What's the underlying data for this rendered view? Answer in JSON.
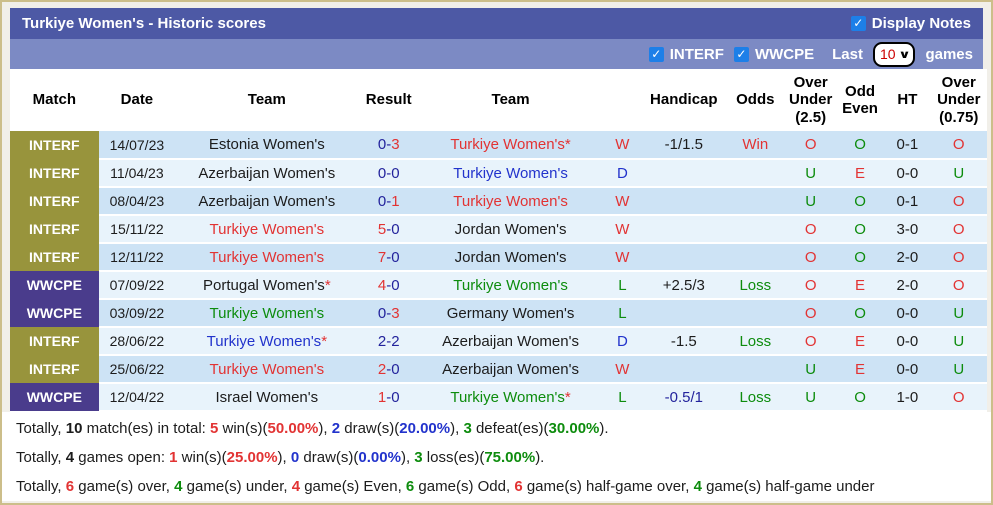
{
  "colors": {
    "k": "#1c1c1c",
    "r": "#e23333",
    "b": "#2233cc",
    "g": "#0d8c0d",
    "n": "#23239c",
    "w": "#ffffff"
  },
  "icons": {
    "checkbox_check": "✓",
    "dropdown_caret": "∨"
  },
  "header": {
    "title": "Turkiye Women's - Historic scores",
    "display_notes_label": "Display Notes"
  },
  "filter_bar": {
    "interf_label": "INTERF",
    "wwcpe_label": "WWCPE",
    "last_label": "Last",
    "games_count": "10",
    "games_label": "games"
  },
  "table": {
    "headers": [
      "Match",
      "Date",
      "Team",
      "Result",
      "Team",
      "",
      "Handicap",
      "Odds",
      "Over\nUnder\n(2.5)",
      "Odd\nEven",
      "HT",
      "Over\nUnder\n(0.75)"
    ],
    "rows": [
      {
        "league": "INTERF",
        "league_class": "olive",
        "date": "14/07/23",
        "home": {
          "text": "Estonia Women's",
          "color": "k",
          "star": false
        },
        "score": [
          {
            "t": "0",
            "c": "n"
          },
          {
            "t": "3",
            "c": "r"
          }
        ],
        "away": {
          "text": "Turkiye Women's",
          "color": "r",
          "star": true
        },
        "wdl": {
          "t": "W",
          "c": "r"
        },
        "handicap": {
          "t": "-1/1.5",
          "c": "k"
        },
        "odds": {
          "t": "Win",
          "c": "r"
        },
        "ou25": {
          "t": "O",
          "c": "r"
        },
        "oe": {
          "t": "O",
          "c": "g"
        },
        "ht": "0-1",
        "ou075": {
          "t": "O",
          "c": "r"
        }
      },
      {
        "league": "INTERF",
        "league_class": "olive",
        "date": "11/04/23",
        "home": {
          "text": "Azerbaijan Women's",
          "color": "k",
          "star": false
        },
        "score": [
          {
            "t": "0",
            "c": "n"
          },
          {
            "t": "0",
            "c": "n"
          }
        ],
        "away": {
          "text": "Turkiye Women's",
          "color": "b",
          "star": false
        },
        "wdl": {
          "t": "D",
          "c": "b"
        },
        "handicap": {
          "t": "",
          "c": "k"
        },
        "odds": {
          "t": "",
          "c": "k"
        },
        "ou25": {
          "t": "U",
          "c": "g"
        },
        "oe": {
          "t": "E",
          "c": "r"
        },
        "ht": "0-0",
        "ou075": {
          "t": "U",
          "c": "g"
        }
      },
      {
        "league": "INTERF",
        "league_class": "olive",
        "date": "08/04/23",
        "home": {
          "text": "Azerbaijan Women's",
          "color": "k",
          "star": false
        },
        "score": [
          {
            "t": "0",
            "c": "n"
          },
          {
            "t": "1",
            "c": "r"
          }
        ],
        "away": {
          "text": "Turkiye Women's",
          "color": "r",
          "star": false
        },
        "wdl": {
          "t": "W",
          "c": "r"
        },
        "handicap": {
          "t": "",
          "c": "k"
        },
        "odds": {
          "t": "",
          "c": "k"
        },
        "ou25": {
          "t": "U",
          "c": "g"
        },
        "oe": {
          "t": "O",
          "c": "g"
        },
        "ht": "0-1",
        "ou075": {
          "t": "O",
          "c": "r"
        }
      },
      {
        "league": "INTERF",
        "league_class": "olive",
        "date": "15/11/22",
        "home": {
          "text": "Turkiye Women's",
          "color": "r",
          "star": false
        },
        "score": [
          {
            "t": "5",
            "c": "r"
          },
          {
            "t": "0",
            "c": "n"
          }
        ],
        "away": {
          "text": "Jordan Women's",
          "color": "k",
          "star": false
        },
        "wdl": {
          "t": "W",
          "c": "r"
        },
        "handicap": {
          "t": "",
          "c": "k"
        },
        "odds": {
          "t": "",
          "c": "k"
        },
        "ou25": {
          "t": "O",
          "c": "r"
        },
        "oe": {
          "t": "O",
          "c": "g"
        },
        "ht": "3-0",
        "ou075": {
          "t": "O",
          "c": "r"
        }
      },
      {
        "league": "INTERF",
        "league_class": "olive",
        "date": "12/11/22",
        "home": {
          "text": "Turkiye Women's",
          "color": "r",
          "star": false
        },
        "score": [
          {
            "t": "7",
            "c": "r"
          },
          {
            "t": "0",
            "c": "n"
          }
        ],
        "away": {
          "text": "Jordan Women's",
          "color": "k",
          "star": false
        },
        "wdl": {
          "t": "W",
          "c": "r"
        },
        "handicap": {
          "t": "",
          "c": "k"
        },
        "odds": {
          "t": "",
          "c": "k"
        },
        "ou25": {
          "t": "O",
          "c": "r"
        },
        "oe": {
          "t": "O",
          "c": "g"
        },
        "ht": "2-0",
        "ou075": {
          "t": "O",
          "c": "r"
        }
      },
      {
        "league": "WWCPE",
        "league_class": "purple",
        "date": "07/09/22",
        "home": {
          "text": "Portugal Women's",
          "color": "k",
          "star": true
        },
        "score": [
          {
            "t": "4",
            "c": "r"
          },
          {
            "t": "0",
            "c": "n"
          }
        ],
        "away": {
          "text": "Turkiye Women's",
          "color": "g",
          "star": false
        },
        "wdl": {
          "t": "L",
          "c": "g"
        },
        "handicap": {
          "t": "+2.5/3",
          "c": "k"
        },
        "odds": {
          "t": "Loss",
          "c": "g"
        },
        "ou25": {
          "t": "O",
          "c": "r"
        },
        "oe": {
          "t": "E",
          "c": "r"
        },
        "ht": "2-0",
        "ou075": {
          "t": "O",
          "c": "r"
        }
      },
      {
        "league": "WWCPE",
        "league_class": "purple",
        "date": "03/09/22",
        "home": {
          "text": "Turkiye Women's",
          "color": "g",
          "star": false
        },
        "score": [
          {
            "t": "0",
            "c": "n"
          },
          {
            "t": "3",
            "c": "r"
          }
        ],
        "away": {
          "text": "Germany Women's",
          "color": "k",
          "star": false
        },
        "wdl": {
          "t": "L",
          "c": "g"
        },
        "handicap": {
          "t": "",
          "c": "k"
        },
        "odds": {
          "t": "",
          "c": "k"
        },
        "ou25": {
          "t": "O",
          "c": "r"
        },
        "oe": {
          "t": "O",
          "c": "g"
        },
        "ht": "0-0",
        "ou075": {
          "t": "U",
          "c": "g"
        }
      },
      {
        "league": "INTERF",
        "league_class": "olive",
        "date": "28/06/22",
        "home": {
          "text": "Turkiye Women's",
          "color": "b",
          "star": true
        },
        "score": [
          {
            "t": "2",
            "c": "n"
          },
          {
            "t": "2",
            "c": "n"
          }
        ],
        "away": {
          "text": "Azerbaijan Women's",
          "color": "k",
          "star": false
        },
        "wdl": {
          "t": "D",
          "c": "b"
        },
        "handicap": {
          "t": "-1.5",
          "c": "k"
        },
        "odds": {
          "t": "Loss",
          "c": "g"
        },
        "ou25": {
          "t": "O",
          "c": "r"
        },
        "oe": {
          "t": "E",
          "c": "r"
        },
        "ht": "0-0",
        "ou075": {
          "t": "U",
          "c": "g"
        }
      },
      {
        "league": "INTERF",
        "league_class": "olive",
        "date": "25/06/22",
        "home": {
          "text": "Turkiye Women's",
          "color": "r",
          "star": false
        },
        "score": [
          {
            "t": "2",
            "c": "r"
          },
          {
            "t": "0",
            "c": "n"
          }
        ],
        "away": {
          "text": "Azerbaijan Women's",
          "color": "k",
          "star": false
        },
        "wdl": {
          "t": "W",
          "c": "r"
        },
        "handicap": {
          "t": "",
          "c": "k"
        },
        "odds": {
          "t": "",
          "c": "k"
        },
        "ou25": {
          "t": "U",
          "c": "g"
        },
        "oe": {
          "t": "E",
          "c": "r"
        },
        "ht": "0-0",
        "ou075": {
          "t": "U",
          "c": "g"
        }
      },
      {
        "league": "WWCPE",
        "league_class": "purple",
        "date": "12/04/22",
        "home": {
          "text": "Israel Women's",
          "color": "k",
          "star": false
        },
        "score": [
          {
            "t": "1",
            "c": "r"
          },
          {
            "t": "0",
            "c": "n"
          }
        ],
        "away": {
          "text": "Turkiye Women's",
          "color": "g",
          "star": true
        },
        "wdl": {
          "t": "L",
          "c": "g"
        },
        "handicap": {
          "t": "-0.5/1",
          "c": "n"
        },
        "odds": {
          "t": "Loss",
          "c": "g"
        },
        "ou25": {
          "t": "U",
          "c": "g"
        },
        "oe": {
          "t": "O",
          "c": "g"
        },
        "ht": "1-0",
        "ou075": {
          "t": "O",
          "c": "r"
        }
      }
    ]
  },
  "footer": {
    "lines": [
      [
        {
          "t": "Totally, ",
          "c": "k"
        },
        {
          "t": "10",
          "c": "k",
          "b": 1
        },
        {
          "t": " match(es) in total: ",
          "c": "k"
        },
        {
          "t": "5",
          "c": "r",
          "b": 1
        },
        {
          "t": " win(s)(",
          "c": "k"
        },
        {
          "t": "50.00%",
          "c": "r",
          "b": 1
        },
        {
          "t": "), ",
          "c": "k"
        },
        {
          "t": "2",
          "c": "b",
          "b": 1
        },
        {
          "t": " draw(s)(",
          "c": "k"
        },
        {
          "t": "20.00%",
          "c": "b",
          "b": 1
        },
        {
          "t": "), ",
          "c": "k"
        },
        {
          "t": "3",
          "c": "g",
          "b": 1
        },
        {
          "t": " defeat(es)(",
          "c": "k"
        },
        {
          "t": "30.00%",
          "c": "g",
          "b": 1
        },
        {
          "t": ").",
          "c": "k"
        }
      ],
      [
        {
          "t": "Totally, ",
          "c": "k"
        },
        {
          "t": "4",
          "c": "k",
          "b": 1
        },
        {
          "t": " games open: ",
          "c": "k"
        },
        {
          "t": "1",
          "c": "r",
          "b": 1
        },
        {
          "t": " win(s)(",
          "c": "k"
        },
        {
          "t": "25.00%",
          "c": "r",
          "b": 1
        },
        {
          "t": "), ",
          "c": "k"
        },
        {
          "t": "0",
          "c": "b",
          "b": 1
        },
        {
          "t": " draw(s)(",
          "c": "k"
        },
        {
          "t": "0.00%",
          "c": "b",
          "b": 1
        },
        {
          "t": "), ",
          "c": "k"
        },
        {
          "t": "3",
          "c": "g",
          "b": 1
        },
        {
          "t": " loss(es)(",
          "c": "k"
        },
        {
          "t": "75.00%",
          "c": "g",
          "b": 1
        },
        {
          "t": ").",
          "c": "k"
        }
      ],
      [
        {
          "t": "Totally, ",
          "c": "k"
        },
        {
          "t": "6",
          "c": "r",
          "b": 1
        },
        {
          "t": " game(s) over, ",
          "c": "k"
        },
        {
          "t": "4",
          "c": "g",
          "b": 1
        },
        {
          "t": " game(s) under, ",
          "c": "k"
        },
        {
          "t": "4",
          "c": "r",
          "b": 1
        },
        {
          "t": " game(s) Even, ",
          "c": "k"
        },
        {
          "t": "6",
          "c": "g",
          "b": 1
        },
        {
          "t": " game(s) Odd, ",
          "c": "k"
        },
        {
          "t": "6",
          "c": "r",
          "b": 1
        },
        {
          "t": " game(s) half-game over, ",
          "c": "k"
        },
        {
          "t": "4",
          "c": "g",
          "b": 1
        },
        {
          "t": " game(s) half-game under",
          "c": "k"
        }
      ]
    ]
  }
}
